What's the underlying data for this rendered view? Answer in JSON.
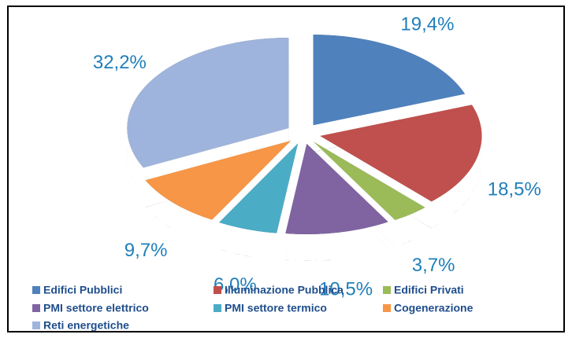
{
  "chart_data": {
    "type": "pie",
    "categories": [
      "Edifici Pubblici",
      "Illuminazione Pubblica",
      "Edifici Privati",
      "PMI settore elettrico",
      "PMI settore termico",
      "Cogenerazione",
      "Reti energetiche"
    ],
    "values": [
      19.4,
      18.5,
      3.7,
      10.5,
      6.0,
      9.7,
      32.2
    ],
    "value_labels": [
      "19,4%",
      "18,5%",
      "3,7%",
      "10,5%",
      "6,0%",
      "9,7%",
      "32,2%"
    ],
    "colors": [
      "#4f81bd",
      "#c0504d",
      "#9bbb59",
      "#8064a2",
      "#4bacc6",
      "#f79646",
      "#9fb4dc"
    ],
    "legend": "bottom"
  }
}
